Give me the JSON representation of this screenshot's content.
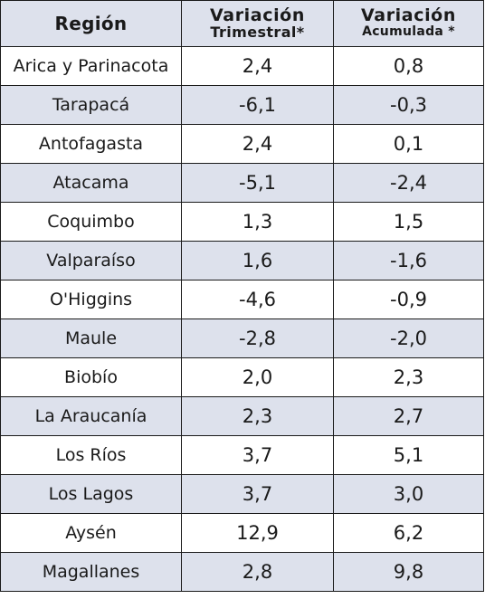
{
  "header": {
    "region": "Región",
    "trimestral_line1": "Variación",
    "trimestral_line2": "Trimestral*",
    "acumulada_line1": "Variación",
    "acumulada_line2": "Acumulada *"
  },
  "rows": [
    {
      "region": "Arica y Parinacota",
      "trimestral": "2,4",
      "acumulada": "0,8"
    },
    {
      "region": "Tarapacá",
      "trimestral": "-6,1",
      "acumulada": "-0,3"
    },
    {
      "region": "Antofagasta",
      "trimestral": "2,4",
      "acumulada": "0,1"
    },
    {
      "region": "Atacama",
      "trimestral": "-5,1",
      "acumulada": "-2,4"
    },
    {
      "region": "Coquimbo",
      "trimestral": "1,3",
      "acumulada": "1,5"
    },
    {
      "region": "Valparaíso",
      "trimestral": "1,6",
      "acumulada": "-1,6"
    },
    {
      "region": "O'Higgins",
      "trimestral": "-4,6",
      "acumulada": "-0,9"
    },
    {
      "region": "Maule",
      "trimestral": "-2,8",
      "acumulada": "-2,0"
    },
    {
      "region": "Biobío",
      "trimestral": "2,0",
      "acumulada": "2,3"
    },
    {
      "region": "La Araucanía",
      "trimestral": "2,3",
      "acumulada": "2,7"
    },
    {
      "region": "Los Ríos",
      "trimestral": "3,7",
      "acumulada": "5,1"
    },
    {
      "region": "Los Lagos",
      "trimestral": "3,7",
      "acumulada": "3,0"
    },
    {
      "region": "Aysén",
      "trimestral": "12,9",
      "acumulada": "6,2"
    },
    {
      "region": "Magallanes",
      "trimestral": "2,8",
      "acumulada": "9,8"
    }
  ],
  "colors": {
    "header_bg": "#dde1ec",
    "stripe_bg": "#dde1ec",
    "border": "#1a1a1a",
    "text": "#1a1a1a"
  }
}
